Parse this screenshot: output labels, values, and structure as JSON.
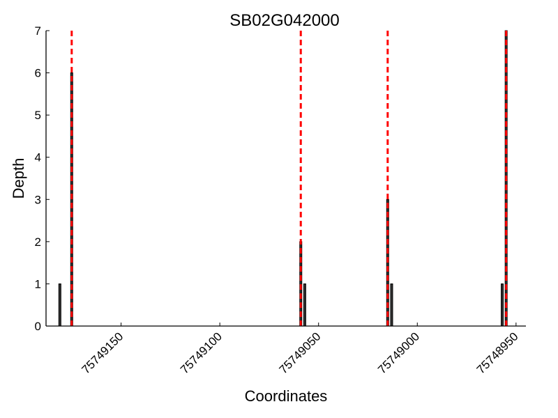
{
  "chart_data": {
    "type": "bar",
    "title": "SB02G042000",
    "xlabel": "Coordinates",
    "ylabel": "Depth",
    "x_axis_reversed": true,
    "xlim": [
      75749188,
      75748945
    ],
    "ylim": [
      0,
      7
    ],
    "x_ticks": [
      75749150,
      75749100,
      75749050,
      75749000,
      75748950
    ],
    "y_ticks": [
      0,
      1,
      2,
      3,
      4,
      5,
      6,
      7
    ],
    "grid": false,
    "legend": "none",
    "series": [
      {
        "bars": [
          {
            "x": 75749181,
            "value": 1
          },
          {
            "x": 75749175,
            "value": 6
          },
          {
            "x": 75749059,
            "value": 2
          },
          {
            "x": 75749057,
            "value": 1
          },
          {
            "x": 75749015,
            "value": 3
          },
          {
            "x": 75749013,
            "value": 1
          },
          {
            "x": 75748957,
            "value": 1
          },
          {
            "x": 75748955,
            "value": 7
          }
        ],
        "color": "#333333"
      }
    ],
    "reference_lines": {
      "x": [
        75749175,
        75749059,
        75749015,
        75748955
      ],
      "color": "#ff0000",
      "style": "dashed"
    }
  }
}
